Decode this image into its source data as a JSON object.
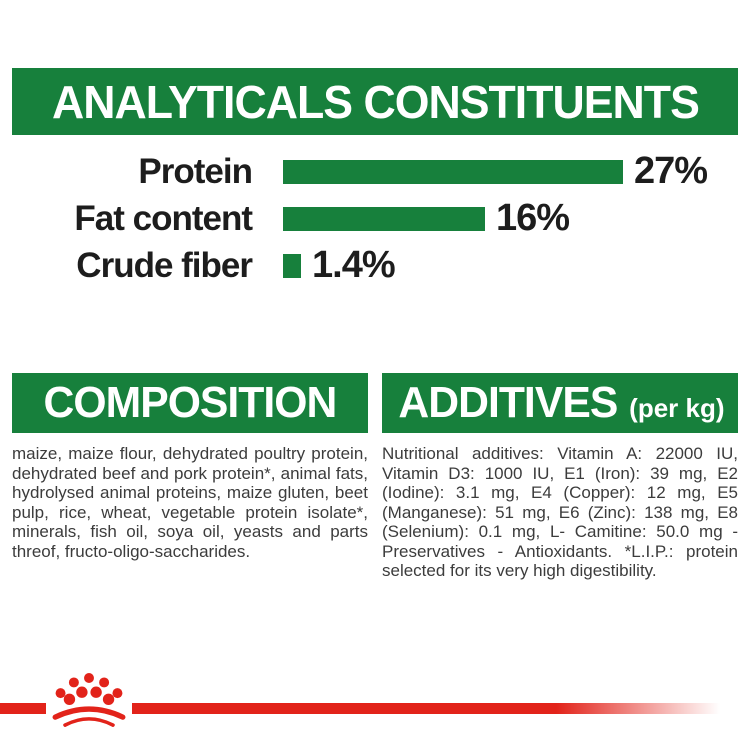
{
  "colors": {
    "green": "#17803c",
    "red": "#e2231a",
    "heading_text": "#ffffff",
    "chart_text": "#1d1d1d",
    "body_text": "#3c3c3c"
  },
  "header": {
    "title": "ANALYTICALS CONSTITUENTS"
  },
  "chart_data": {
    "type": "bar",
    "orientation": "horizontal",
    "title": "ANALYTICALS CONSTITUENTS",
    "categories": [
      "Protein",
      "Fat content",
      "Crude fiber"
    ],
    "values": [
      27,
      16,
      1.4
    ],
    "value_labels": [
      "27%",
      "16%",
      "1.4%"
    ],
    "unit": "%",
    "bar_color": "#17803c",
    "xlim": [
      0,
      28
    ],
    "grid": false,
    "legend": false
  },
  "sections": {
    "composition": {
      "title": "COMPOSITION",
      "body": "maize, maize flour, dehydrated poultry protein, dehydrated beef and pork protein*, animal fats, hydrolysed animal proteins, maize gluten, beet pulp, rice, wheat, vegetable protein isolate*, minerals, fish oil, soya oil, yeasts and parts threof, fructo-oligo-saccharides."
    },
    "additives": {
      "title": "ADDITIVES",
      "title_suffix": "(per kg)",
      "body": "Nutritional additives: Vitamin A: 22000 IU, Vitamin D3: 1000 IU, E1 (Iron): 39 mg, E2 (Iodine): 3.1 mg, E4 (Copper): 12 mg, E5 (Manganese): 51 mg, E6 (Zinc): 138 mg, E8 (Selenium): 0.1 mg, L- Camitine: 50.0 mg - Preservatives - Antioxidants. *L.I.P.: protein selected for its very high digestibility."
    }
  },
  "footer": {
    "logo_icon": "royal-canin-crown-icon",
    "bar_color": "#e2231a"
  }
}
